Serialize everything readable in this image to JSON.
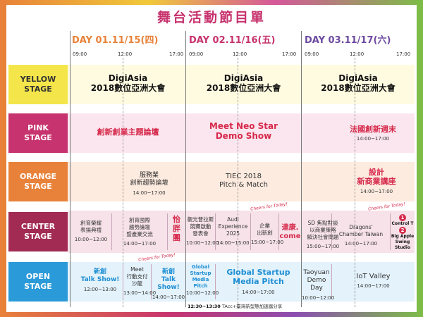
{
  "title": "舞台活動節目單",
  "days": [
    {
      "label": "DAY 01.",
      "date": "11/15",
      "weekday": "(四)",
      "color": "#e8823a"
    },
    {
      "label": "DAY 02.",
      "date": "11/16",
      "weekday": "(五)",
      "color": "#c7336e"
    },
    {
      "label": "DAY 03.",
      "date": "11/17",
      "weekday": "(六)",
      "color": "#6e4aa0"
    }
  ],
  "time_labels": [
    "09:00",
    "12:00",
    "17:00"
  ],
  "stages": [
    {
      "line1": "YELLOW",
      "line2": "STAGE",
      "color": "#f4e64a",
      "bg": "#fffbe0"
    },
    {
      "line1": "PINK",
      "line2": "STAGE",
      "color": "#c7336e",
      "bg": "#fbe6ef"
    },
    {
      "line1": "ORANGE",
      "line2": "STAGE",
      "color": "#e8823a",
      "bg": "#fdebdf"
    },
    {
      "line1": "CENTER",
      "line2": "STAGE",
      "color": "#a12b52",
      "bg": "#f6e2e8"
    },
    {
      "line1": "OPEN",
      "line2": "STAGE",
      "color": "#2a9ad8",
      "bg": "#e3f2fb"
    }
  ],
  "yellow": {
    "name": "DigiAsia",
    "subtitle": "2018數位亞洲大會"
  },
  "pink": {
    "d1": "創新創業主題論壇",
    "d2_line1": "Meet Neo Star",
    "d2_line2": "Demo Show",
    "d3": "法國創新週末",
    "d3_time": "14:00~17:00"
  },
  "orange": {
    "d1_line1": "服務業",
    "d1_line2": "創新趨勢論壇",
    "d1_time": "14:00~17:00",
    "d2_line1": "TIEC 2018",
    "d2_line2": "Pitch & Match",
    "d3_line1": "設計",
    "d3_line2": "新商業講座",
    "d3_time": "14:00~17:00"
  },
  "center": {
    "cheers": "Cheers for Today!",
    "d1a_line1": "創育榮耀",
    "d1a_line2": "表揚典禮",
    "d1a_time": "10:00~12:00",
    "d1b_line1": "創育國際",
    "d1b_line2": "趨勢論壇",
    "d1b_line3": "暨產業交流",
    "d1b_time": "14:00~17:00",
    "d1c_line1": "怡",
    "d1c_line2": "胖",
    "d1c_line3": "團",
    "d2a_line1": "觀光普拉斯",
    "d2a_line2": "競賽啟動",
    "d2a_line3": "發表會",
    "d2a_time": "10:00~12:00",
    "d2b_line1": "Audi",
    "d2b_line2": "Experience",
    "d2b_line3": "2025",
    "d2b_time": "14:00~15:00",
    "d2c_line1": "企業",
    "d2c_line2": "出新創",
    "d2c_time": "15:00~17:00",
    "d2d_line1": "達康.",
    "d2d_line2": "come",
    "d3a_line1": "SD 焦點對談",
    "d3a_line2": "以商業策略",
    "d3a_line3": "解決社會問題",
    "d3a_time": "15:00~17:00",
    "d3b_line1": "Dragons'",
    "d3b_line2": "Chamber Taiwan",
    "d3b_time": "14:00~17:00",
    "d3c_num1": "1",
    "d3c_line1": "Control T",
    "d3c_num2": "2",
    "d3c_line2": "Big Apple",
    "d3c_line3": "Swing Studio"
  },
  "open": {
    "cheers": "Cheers for Today!",
    "d1a_line1": "新創",
    "d1a_line2": "Talk Show!",
    "d1a_time": "12:00~13:00",
    "d1b_line1": "Meet",
    "d1b_line2": "行動支付",
    "d1b_line3": "沙龍",
    "d1b_time": "13:00~14:00",
    "d1c_line1": "新創",
    "d1c_line2": "Talk Show!",
    "d1c_time": "14:00~17:00",
    "d2a_line1": "Global",
    "d2a_line2": "Startup",
    "d2a_line3": "Media",
    "d2a_line4": "Pitch",
    "d2a_time": "10:00~12:00",
    "d2b_line1": "Global Startup",
    "d2b_line2": "Media Pitch",
    "d2b_time": "14:00~17:00",
    "d2c_time": "12:30~13:30",
    "d2c_text": "TAcc+臺灣新型態加速器分享",
    "d3a_line1": "Taoyuan",
    "d3a_line2": "Demo Day",
    "d3a_time": "10:00~12:00",
    "d3b_line1": "IoT Valley",
    "d3b_time": "14:00~17:00"
  }
}
